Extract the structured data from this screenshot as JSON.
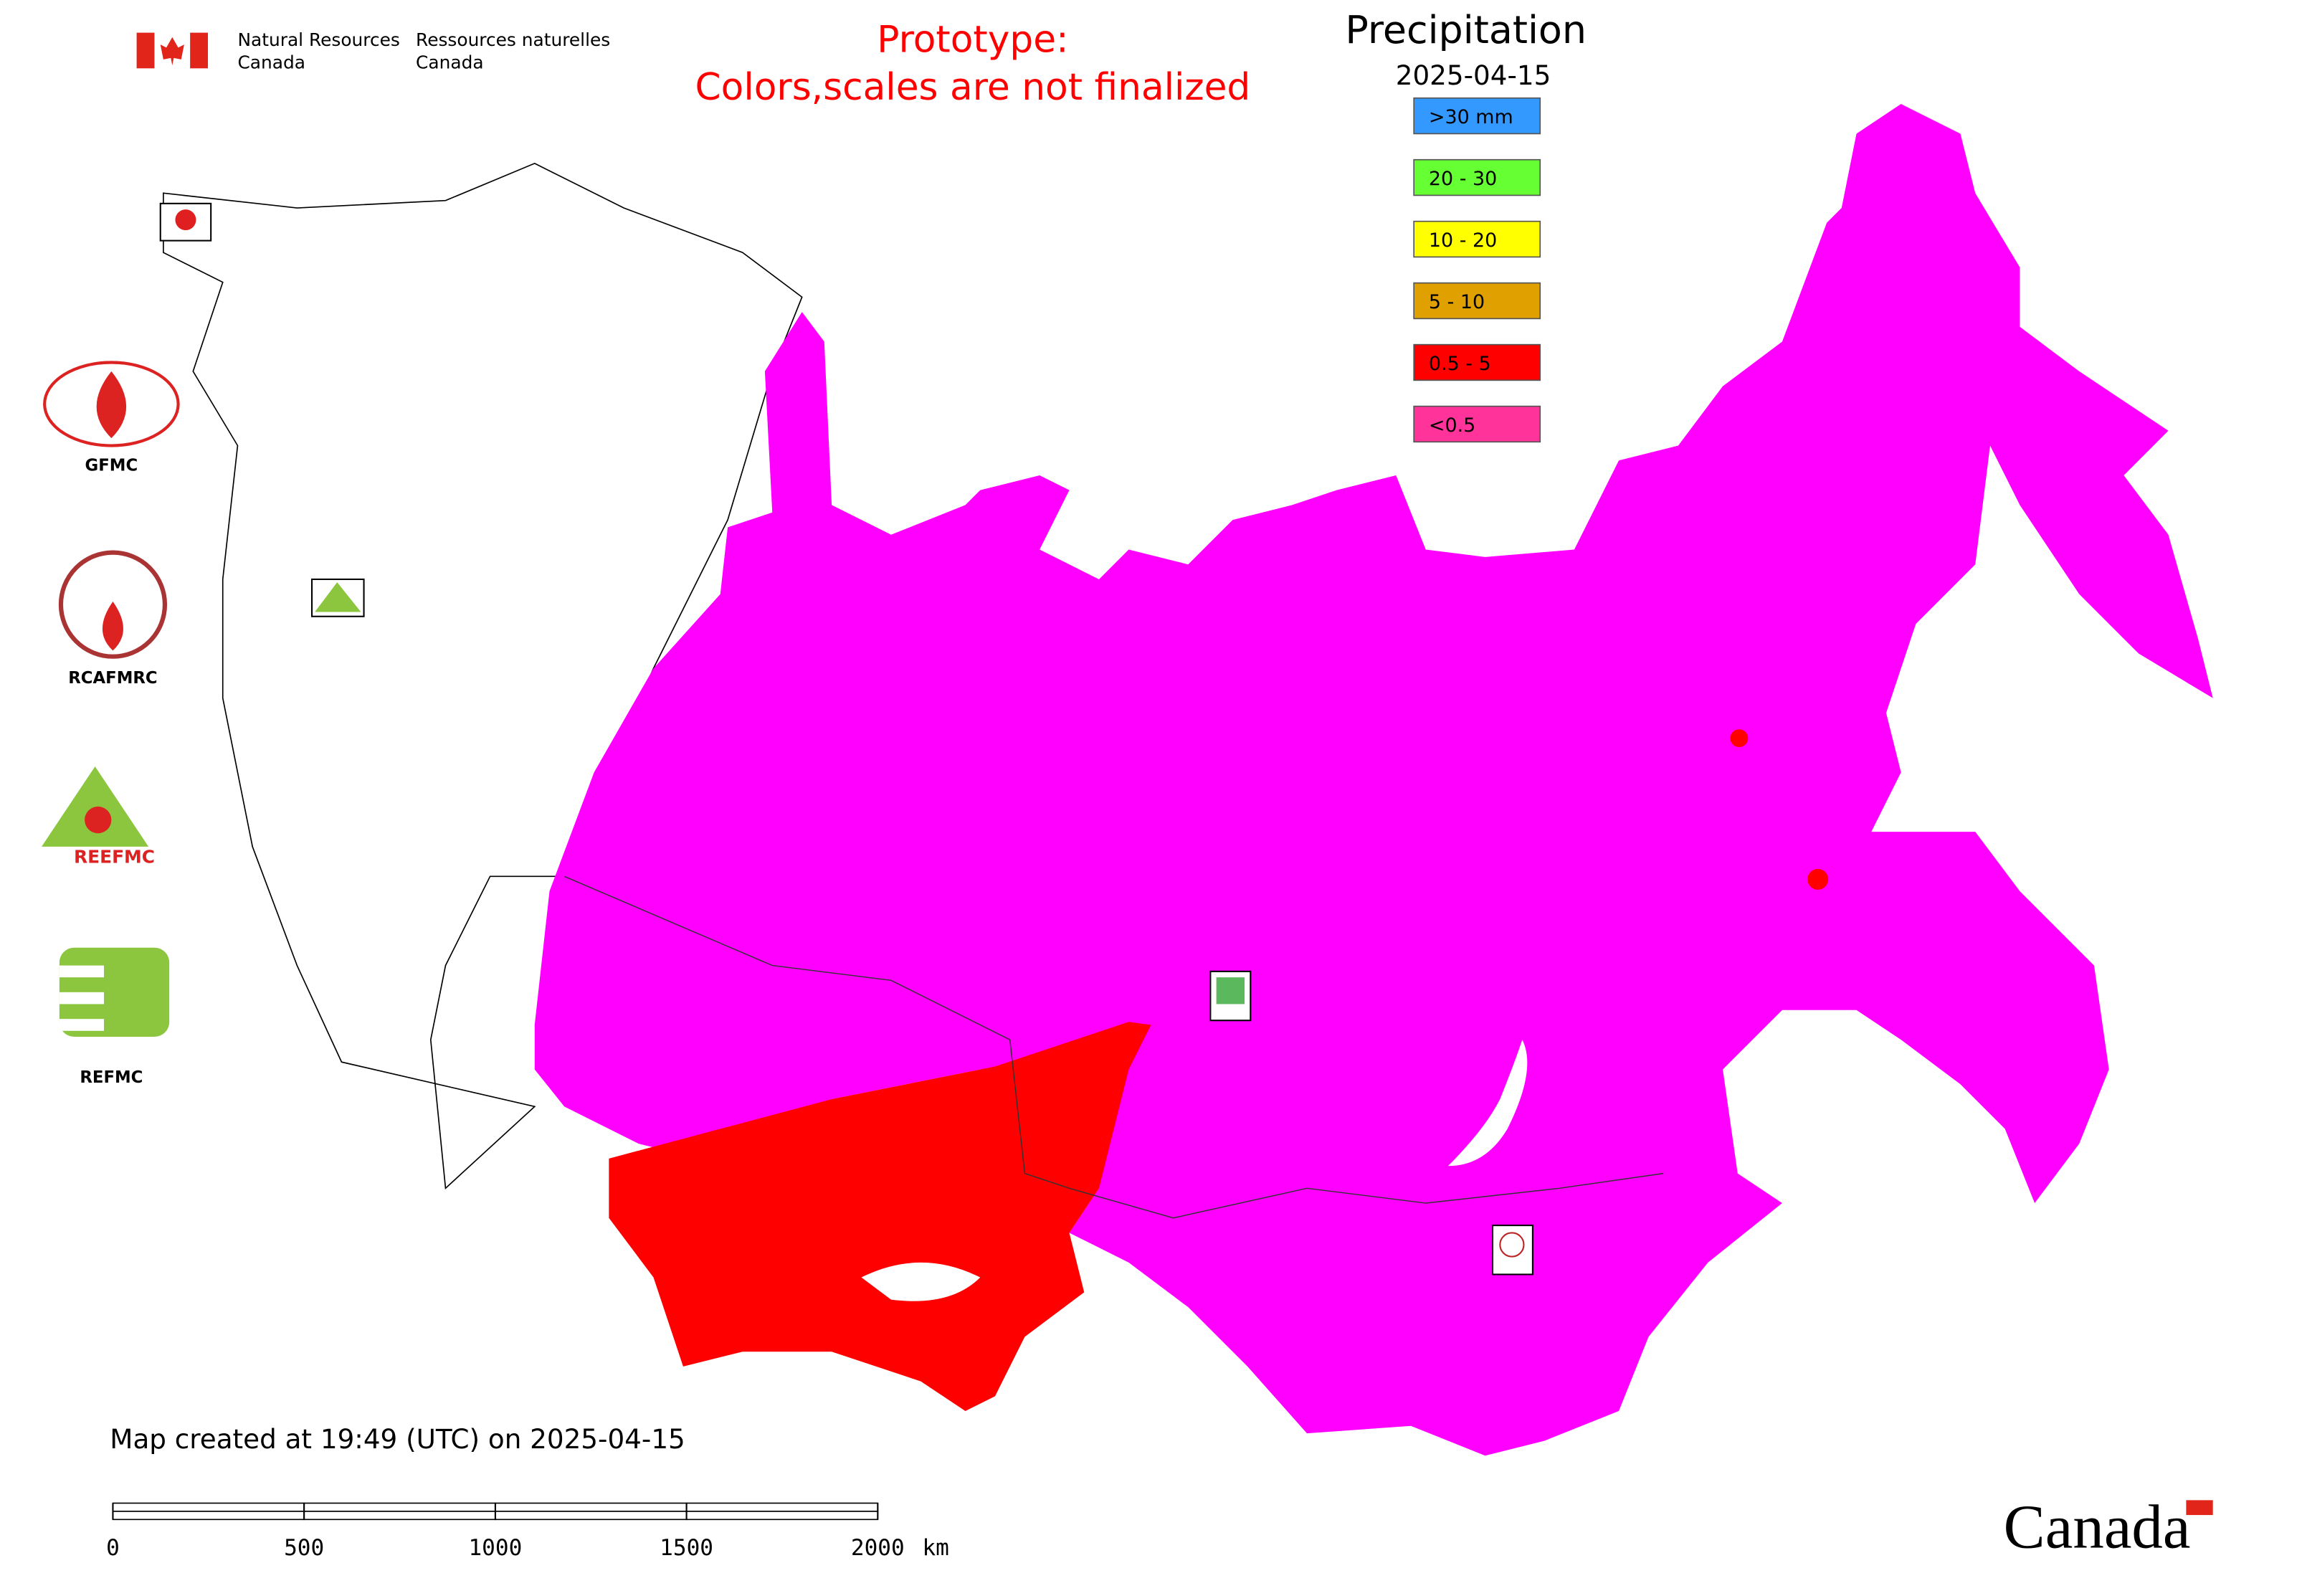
{
  "header": {
    "department_en": [
      "Natural Resources",
      "Canada"
    ],
    "department_fr": [
      "Ressources naturelles",
      "Canada"
    ],
    "notice": [
      "Prototype:",
      "Colors,scales are not finalized"
    ]
  },
  "legend": {
    "title": "Precipitation",
    "date": "2025-04-15",
    "items": [
      {
        "label": ">30 mm",
        "color": "#3399ff"
      },
      {
        "label": "20 - 30",
        "color": "#66ff33"
      },
      {
        "label": "10 - 20",
        "color": "#ffff00"
      },
      {
        "label": "5 - 10",
        "color": "#e0a000"
      },
      {
        "label": "0.5 - 5",
        "color": "#ff0000"
      },
      {
        "label": "<0.5",
        "color": "#ff3399"
      }
    ]
  },
  "logos": {
    "gfmc": "GFMC",
    "rcafmrc": "RCAFMRC",
    "reefmc": "REEFMC",
    "refmc": "REFMC"
  },
  "footer": {
    "created": "Map created at 19:49 (UTC) on 2025-04-15",
    "wordmark": "Canada"
  },
  "scale_bar": {
    "ticks": [
      0,
      500,
      1000,
      1500,
      2000
    ],
    "unit": "km"
  }
}
